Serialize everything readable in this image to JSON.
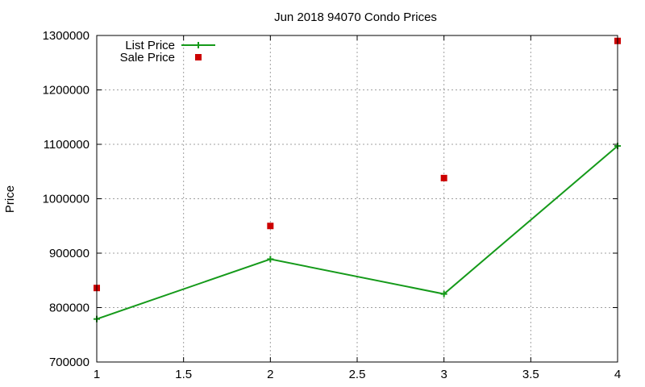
{
  "chart_data": {
    "type": "line",
    "title": "Jun 2018 94070 Condo Prices",
    "xlabel": "",
    "ylabel": "Price",
    "xlim": [
      1,
      4
    ],
    "ylim": [
      700000,
      1300000
    ],
    "x_ticks": [
      "1",
      "1.5",
      "2",
      "2.5",
      "3",
      "3.5",
      "4"
    ],
    "y_ticks": [
      "700000",
      "800000",
      "900000",
      "1000000",
      "1100000",
      "1200000",
      "1300000"
    ],
    "grid": true,
    "legend_position": "top-left",
    "series": [
      {
        "name": "List Price",
        "style": "line+points",
        "color": "#159a1a",
        "x": [
          1,
          2,
          3,
          4
        ],
        "y": [
          779000,
          889000,
          825000,
          1097000
        ]
      },
      {
        "name": "Sale Price",
        "style": "points",
        "color": "#cc0000",
        "x": [
          1,
          2,
          3,
          4
        ],
        "y": [
          836000,
          950000,
          1038000,
          1290000
        ]
      }
    ]
  }
}
